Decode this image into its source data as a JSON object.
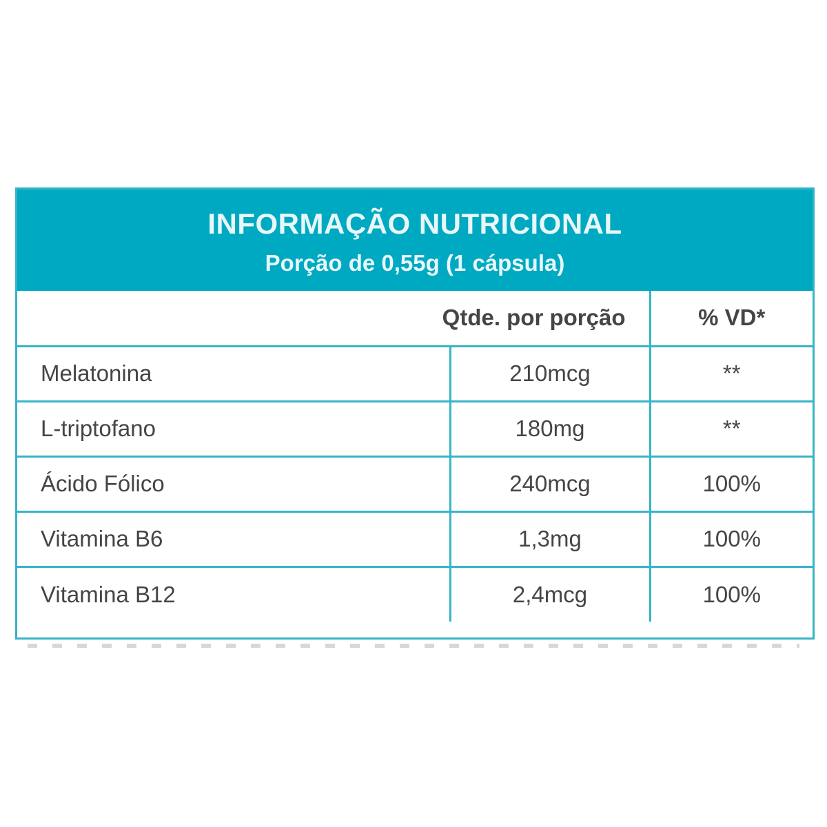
{
  "label": {
    "title": "INFORMAÇÃO NUTRICIONAL",
    "serving": "Porção de 0,55g (1 cápsula)",
    "headers": {
      "name": "",
      "quantity": "Qtde. por porção",
      "daily_value": "% VD*"
    },
    "rows": [
      {
        "name": "Melatonina",
        "quantity": "210mcg",
        "daily_value": "**"
      },
      {
        "name": "L-triptofano",
        "quantity": "180mg",
        "daily_value": "**"
      },
      {
        "name": "Ácido Fólico",
        "quantity": "240mcg",
        "daily_value": "100%"
      },
      {
        "name": "Vitamina B6",
        "quantity": "1,3mg",
        "daily_value": "100%"
      },
      {
        "name": "Vitamina B12",
        "quantity": "2,4mcg",
        "daily_value": "100%"
      }
    ]
  },
  "colors": {
    "header_bg": "#00a9c2",
    "border": "#35b4c8",
    "header_text": "#e8f7fa",
    "body_text": "#454545"
  }
}
